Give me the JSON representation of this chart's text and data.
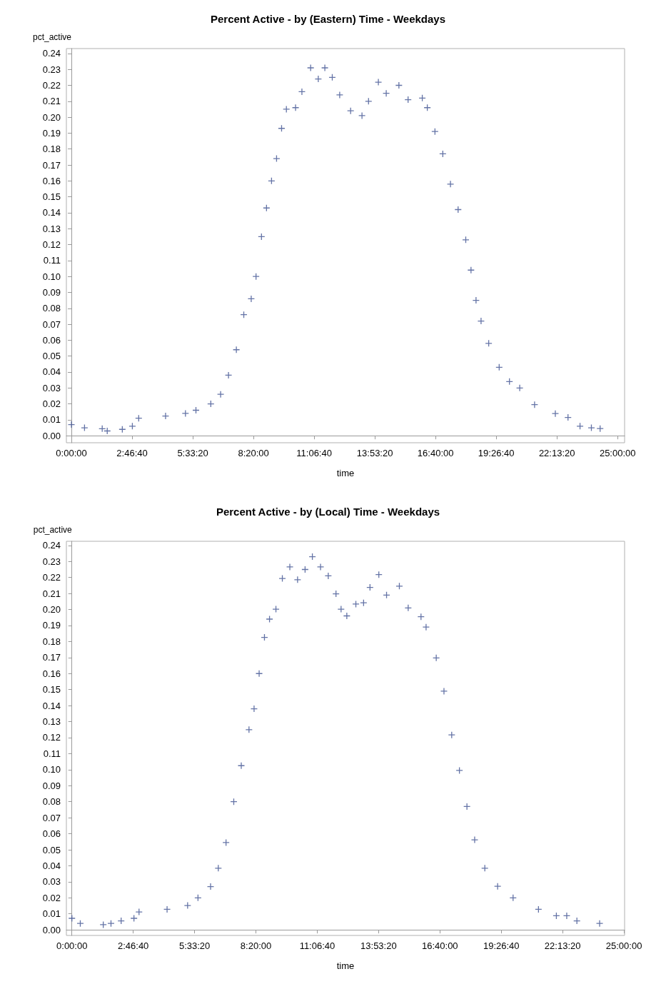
{
  "chart_data": [
    {
      "type": "scatter",
      "title": "Percent Active - by (Eastern) Time - Weekdays",
      "xlabel": "time",
      "ylabel": "pct_active",
      "marker": "cross",
      "xlim": [
        -0.23,
        25.32
      ],
      "ylim": [
        -0.0044,
        0.2431
      ],
      "xticks": [
        {
          "value": 0,
          "label": "0:00:00"
        },
        {
          "value": 2.7778,
          "label": "2:46:40"
        },
        {
          "value": 5.5556,
          "label": "5:33:20"
        },
        {
          "value": 8.3333,
          "label": "8:20:00"
        },
        {
          "value": 11.1111,
          "label": "11:06:40"
        },
        {
          "value": 13.8889,
          "label": "13:53:20"
        },
        {
          "value": 16.6667,
          "label": "16:40:00"
        },
        {
          "value": 19.4444,
          "label": "19:26:40"
        },
        {
          "value": 22.2222,
          "label": "22:13:20"
        },
        {
          "value": 25,
          "label": "25:00:00"
        }
      ],
      "yticks": [
        {
          "value": 0,
          "label": "0.00"
        },
        {
          "value": 0.01,
          "label": "0.01"
        },
        {
          "value": 0.02,
          "label": "0.02"
        },
        {
          "value": 0.03,
          "label": "0.03"
        },
        {
          "value": 0.04,
          "label": "0.04"
        },
        {
          "value": 0.05,
          "label": "0.05"
        },
        {
          "value": 0.06,
          "label": "0.06"
        },
        {
          "value": 0.07,
          "label": "0.07"
        },
        {
          "value": 0.08,
          "label": "0.08"
        },
        {
          "value": 0.09,
          "label": "0.09"
        },
        {
          "value": 0.1,
          "label": "0.10"
        },
        {
          "value": 0.11,
          "label": "0.11"
        },
        {
          "value": 0.12,
          "label": "0.12"
        },
        {
          "value": 0.13,
          "label": "0.13"
        },
        {
          "value": 0.14,
          "label": "0.14"
        },
        {
          "value": 0.15,
          "label": "0.15"
        },
        {
          "value": 0.16,
          "label": "0.16"
        },
        {
          "value": 0.17,
          "label": "0.17"
        },
        {
          "value": 0.18,
          "label": "0.18"
        },
        {
          "value": 0.19,
          "label": "0.19"
        },
        {
          "value": 0.2,
          "label": "0.20"
        },
        {
          "value": 0.21,
          "label": "0.21"
        },
        {
          "value": 0.22,
          "label": "0.22"
        },
        {
          "value": 0.23,
          "label": "0.23"
        },
        {
          "value": 0.24,
          "label": "0.24"
        }
      ],
      "series": [
        {
          "color": "#3d5090",
          "x": [
            0,
            0.6,
            1.41,
            1.64,
            2.33,
            2.79,
            3.08,
            4.31,
            5.22,
            5.7,
            6.38,
            6.83,
            7.19,
            7.55,
            7.89,
            8.23,
            8.45,
            8.7,
            8.93,
            9.16,
            9.39,
            9.62,
            9.84,
            10.26,
            10.55,
            10.95,
            11.3,
            11.6,
            11.94,
            12.28,
            12.78,
            13.3,
            13.6,
            14.05,
            14.41,
            14.99,
            15.41,
            16.06,
            16.29,
            16.64,
            17.0,
            17.35,
            17.7,
            18.05,
            18.29,
            18.52,
            18.75,
            19.1,
            19.58,
            20.05,
            20.52,
            21.2,
            22.15,
            22.73,
            23.28,
            23.8,
            24.2
          ],
          "values": [
            0.007,
            0.005,
            0.0044,
            0.003,
            0.004,
            0.006,
            0.011,
            0.0124,
            0.014,
            0.016,
            0.02,
            0.026,
            0.038,
            0.054,
            0.076,
            0.086,
            0.1,
            0.125,
            0.143,
            0.16,
            0.174,
            0.193,
            0.205,
            0.206,
            0.216,
            0.231,
            0.224,
            0.231,
            0.225,
            0.214,
            0.204,
            0.201,
            0.21,
            0.222,
            0.215,
            0.22,
            0.211,
            0.212,
            0.206,
            0.191,
            0.177,
            0.158,
            0.142,
            0.123,
            0.104,
            0.085,
            0.072,
            0.058,
            0.043,
            0.034,
            0.03,
            0.0195,
            0.0139,
            0.0115,
            0.006,
            0.005,
            0.0045
          ]
        }
      ]
    },
    {
      "type": "scatter",
      "title": "Percent Active - by (Local) Time - Weekdays",
      "xlabel": "time",
      "ylabel": "pct_active",
      "marker": "cross",
      "xlim": [
        -0.25,
        25.03
      ],
      "ylim": [
        -0.0035,
        0.2426
      ],
      "xticks": [
        {
          "value": 0,
          "label": "0:00:00"
        },
        {
          "value": 2.7778,
          "label": "2:46:40"
        },
        {
          "value": 5.5556,
          "label": "5:33:20"
        },
        {
          "value": 8.3333,
          "label": "8:20:00"
        },
        {
          "value": 11.1111,
          "label": "11:06:40"
        },
        {
          "value": 13.8889,
          "label": "13:53:20"
        },
        {
          "value": 16.6667,
          "label": "16:40:00"
        },
        {
          "value": 19.4444,
          "label": "19:26:40"
        },
        {
          "value": 22.2222,
          "label": "22:13:20"
        },
        {
          "value": 25,
          "label": "25:00:00"
        }
      ],
      "yticks": [
        {
          "value": 0,
          "label": "0.00"
        },
        {
          "value": 0.01,
          "label": "0.01"
        },
        {
          "value": 0.02,
          "label": "0.02"
        },
        {
          "value": 0.03,
          "label": "0.03"
        },
        {
          "value": 0.04,
          "label": "0.04"
        },
        {
          "value": 0.05,
          "label": "0.05"
        },
        {
          "value": 0.06,
          "label": "0.06"
        },
        {
          "value": 0.07,
          "label": "0.07"
        },
        {
          "value": 0.08,
          "label": "0.08"
        },
        {
          "value": 0.09,
          "label": "0.09"
        },
        {
          "value": 0.1,
          "label": "0.10"
        },
        {
          "value": 0.11,
          "label": "0.11"
        },
        {
          "value": 0.12,
          "label": "0.12"
        },
        {
          "value": 0.13,
          "label": "0.13"
        },
        {
          "value": 0.14,
          "label": "0.14"
        },
        {
          "value": 0.15,
          "label": "0.15"
        },
        {
          "value": 0.16,
          "label": "0.16"
        },
        {
          "value": 0.17,
          "label": "0.17"
        },
        {
          "value": 0.18,
          "label": "0.18"
        },
        {
          "value": 0.19,
          "label": "0.19"
        },
        {
          "value": 0.2,
          "label": "0.20"
        },
        {
          "value": 0.21,
          "label": "0.21"
        },
        {
          "value": 0.22,
          "label": "0.22"
        },
        {
          "value": 0.23,
          "label": "0.23"
        },
        {
          "value": 0.24,
          "label": "0.24"
        }
      ],
      "series": [
        {
          "color": "#3d5090",
          "x": [
            0,
            0.38,
            1.42,
            1.77,
            2.23,
            2.81,
            3.04,
            4.31,
            5.24,
            5.71,
            6.28,
            6.63,
            6.98,
            7.33,
            7.67,
            8.02,
            8.25,
            8.48,
            8.72,
            8.95,
            9.24,
            9.53,
            9.87,
            10.22,
            10.56,
            10.89,
            11.26,
            11.61,
            11.96,
            12.19,
            12.45,
            12.86,
            13.21,
            13.5,
            13.9,
            14.25,
            14.83,
            15.23,
            15.81,
            16.04,
            16.5,
            16.85,
            17.2,
            17.55,
            17.89,
            18.24,
            18.7,
            19.28,
            19.98,
            21.13,
            21.94,
            22.41,
            22.87,
            23.9
          ],
          "values": [
            0.0072,
            0.004,
            0.0032,
            0.004,
            0.0056,
            0.0072,
            0.0112,
            0.0128,
            0.0152,
            0.02,
            0.027,
            0.0385,
            0.0545,
            0.08,
            0.1025,
            0.125,
            0.138,
            0.16,
            0.1826,
            0.194,
            0.2002,
            0.2194,
            0.2266,
            0.2186,
            0.225,
            0.233,
            0.2266,
            0.221,
            0.2098,
            0.2002,
            0.196,
            0.2034,
            0.2042,
            0.2138,
            0.2218,
            0.209,
            0.2146,
            0.201,
            0.1955,
            0.189,
            0.1698,
            0.149,
            0.1217,
            0.0995,
            0.077,
            0.0562,
            0.0385,
            0.0272,
            0.02,
            0.0128,
            0.0088,
            0.0088,
            0.0056,
            0.004
          ]
        }
      ]
    }
  ]
}
